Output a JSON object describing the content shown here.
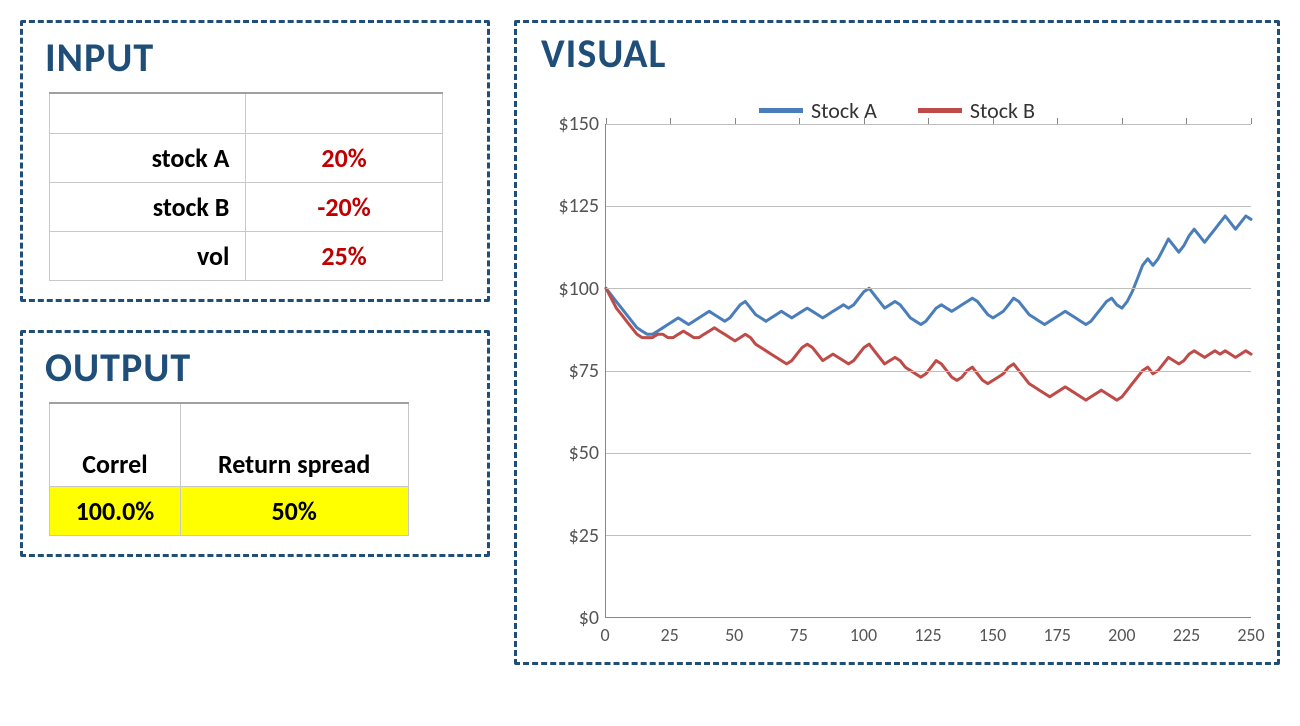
{
  "panels": {
    "input_title": "INPUT",
    "output_title": "OUTPUT",
    "visual_title": "VISUAL"
  },
  "input": {
    "rows": [
      {
        "label": "stock A",
        "value": "20%"
      },
      {
        "label": "stock B",
        "value": "-20%"
      },
      {
        "label": "vol",
        "value": "25%"
      }
    ],
    "label_color": "#000000",
    "value_color": "#c00000",
    "border_color": "#c8c8c8",
    "fontsize": 26
  },
  "output": {
    "headers": [
      "Correl",
      "Return spread"
    ],
    "row": [
      "100.0%",
      "50%"
    ],
    "highlight_color": "#ffff00",
    "fontsize": 26
  },
  "chart": {
    "type": "line",
    "legend": [
      {
        "label": "Stock A",
        "color": "#4a7ebb"
      },
      {
        "label": "Stock B",
        "color": "#be4b48"
      }
    ],
    "x": {
      "min": 0,
      "max": 250,
      "tick_step": 25
    },
    "y": {
      "min": 0,
      "max": 150,
      "tick_step": 25,
      "prefix": "$"
    },
    "grid_color": "#bfbfbf",
    "axis_color": "#888888",
    "background_color": "#ffffff",
    "line_width": 3,
    "label_fontsize": 20,
    "series": {
      "stockA": {
        "color": "#4a7ebb",
        "points": [
          [
            0,
            100
          ],
          [
            2,
            98
          ],
          [
            4,
            96
          ],
          [
            6,
            94
          ],
          [
            8,
            92
          ],
          [
            10,
            90
          ],
          [
            12,
            88
          ],
          [
            14,
            87
          ],
          [
            16,
            86
          ],
          [
            18,
            86
          ],
          [
            20,
            87
          ],
          [
            22,
            88
          ],
          [
            24,
            89
          ],
          [
            26,
            90
          ],
          [
            28,
            91
          ],
          [
            30,
            90
          ],
          [
            32,
            89
          ],
          [
            34,
            90
          ],
          [
            36,
            91
          ],
          [
            38,
            92
          ],
          [
            40,
            93
          ],
          [
            42,
            92
          ],
          [
            44,
            91
          ],
          [
            46,
            90
          ],
          [
            48,
            91
          ],
          [
            50,
            93
          ],
          [
            52,
            95
          ],
          [
            54,
            96
          ],
          [
            56,
            94
          ],
          [
            58,
            92
          ],
          [
            60,
            91
          ],
          [
            62,
            90
          ],
          [
            64,
            91
          ],
          [
            66,
            92
          ],
          [
            68,
            93
          ],
          [
            70,
            92
          ],
          [
            72,
            91
          ],
          [
            74,
            92
          ],
          [
            76,
            93
          ],
          [
            78,
            94
          ],
          [
            80,
            93
          ],
          [
            82,
            92
          ],
          [
            84,
            91
          ],
          [
            86,
            92
          ],
          [
            88,
            93
          ],
          [
            90,
            94
          ],
          [
            92,
            95
          ],
          [
            94,
            94
          ],
          [
            96,
            95
          ],
          [
            98,
            97
          ],
          [
            100,
            99
          ],
          [
            102,
            100
          ],
          [
            104,
            98
          ],
          [
            106,
            96
          ],
          [
            108,
            94
          ],
          [
            110,
            95
          ],
          [
            112,
            96
          ],
          [
            114,
            95
          ],
          [
            116,
            93
          ],
          [
            118,
            91
          ],
          [
            120,
            90
          ],
          [
            122,
            89
          ],
          [
            124,
            90
          ],
          [
            126,
            92
          ],
          [
            128,
            94
          ],
          [
            130,
            95
          ],
          [
            132,
            94
          ],
          [
            134,
            93
          ],
          [
            136,
            94
          ],
          [
            138,
            95
          ],
          [
            140,
            96
          ],
          [
            142,
            97
          ],
          [
            144,
            96
          ],
          [
            146,
            94
          ],
          [
            148,
            92
          ],
          [
            150,
            91
          ],
          [
            152,
            92
          ],
          [
            154,
            93
          ],
          [
            156,
            95
          ],
          [
            158,
            97
          ],
          [
            160,
            96
          ],
          [
            162,
            94
          ],
          [
            164,
            92
          ],
          [
            166,
            91
          ],
          [
            168,
            90
          ],
          [
            170,
            89
          ],
          [
            172,
            90
          ],
          [
            174,
            91
          ],
          [
            176,
            92
          ],
          [
            178,
            93
          ],
          [
            180,
            92
          ],
          [
            182,
            91
          ],
          [
            184,
            90
          ],
          [
            186,
            89
          ],
          [
            188,
            90
          ],
          [
            190,
            92
          ],
          [
            192,
            94
          ],
          [
            194,
            96
          ],
          [
            196,
            97
          ],
          [
            198,
            95
          ],
          [
            200,
            94
          ],
          [
            202,
            96
          ],
          [
            204,
            99
          ],
          [
            206,
            103
          ],
          [
            208,
            107
          ],
          [
            210,
            109
          ],
          [
            212,
            107
          ],
          [
            214,
            109
          ],
          [
            216,
            112
          ],
          [
            218,
            115
          ],
          [
            220,
            113
          ],
          [
            222,
            111
          ],
          [
            224,
            113
          ],
          [
            226,
            116
          ],
          [
            228,
            118
          ],
          [
            230,
            116
          ],
          [
            232,
            114
          ],
          [
            234,
            116
          ],
          [
            236,
            118
          ],
          [
            238,
            120
          ],
          [
            240,
            122
          ],
          [
            242,
            120
          ],
          [
            244,
            118
          ],
          [
            246,
            120
          ],
          [
            248,
            122
          ],
          [
            250,
            121
          ]
        ]
      },
      "stockB": {
        "color": "#be4b48",
        "points": [
          [
            0,
            100
          ],
          [
            2,
            97
          ],
          [
            4,
            94
          ],
          [
            6,
            92
          ],
          [
            8,
            90
          ],
          [
            10,
            88
          ],
          [
            12,
            86
          ],
          [
            14,
            85
          ],
          [
            16,
            85
          ],
          [
            18,
            85
          ],
          [
            20,
            86
          ],
          [
            22,
            86
          ],
          [
            24,
            85
          ],
          [
            26,
            85
          ],
          [
            28,
            86
          ],
          [
            30,
            87
          ],
          [
            32,
            86
          ],
          [
            34,
            85
          ],
          [
            36,
            85
          ],
          [
            38,
            86
          ],
          [
            40,
            87
          ],
          [
            42,
            88
          ],
          [
            44,
            87
          ],
          [
            46,
            86
          ],
          [
            48,
            85
          ],
          [
            50,
            84
          ],
          [
            52,
            85
          ],
          [
            54,
            86
          ],
          [
            56,
            85
          ],
          [
            58,
            83
          ],
          [
            60,
            82
          ],
          [
            62,
            81
          ],
          [
            64,
            80
          ],
          [
            66,
            79
          ],
          [
            68,
            78
          ],
          [
            70,
            77
          ],
          [
            72,
            78
          ],
          [
            74,
            80
          ],
          [
            76,
            82
          ],
          [
            78,
            83
          ],
          [
            80,
            82
          ],
          [
            82,
            80
          ],
          [
            84,
            78
          ],
          [
            86,
            79
          ],
          [
            88,
            80
          ],
          [
            90,
            79
          ],
          [
            92,
            78
          ],
          [
            94,
            77
          ],
          [
            96,
            78
          ],
          [
            98,
            80
          ],
          [
            100,
            82
          ],
          [
            102,
            83
          ],
          [
            104,
            81
          ],
          [
            106,
            79
          ],
          [
            108,
            77
          ],
          [
            110,
            78
          ],
          [
            112,
            79
          ],
          [
            114,
            78
          ],
          [
            116,
            76
          ],
          [
            118,
            75
          ],
          [
            120,
            74
          ],
          [
            122,
            73
          ],
          [
            124,
            74
          ],
          [
            126,
            76
          ],
          [
            128,
            78
          ],
          [
            130,
            77
          ],
          [
            132,
            75
          ],
          [
            134,
            73
          ],
          [
            136,
            72
          ],
          [
            138,
            73
          ],
          [
            140,
            75
          ],
          [
            142,
            76
          ],
          [
            144,
            74
          ],
          [
            146,
            72
          ],
          [
            148,
            71
          ],
          [
            150,
            72
          ],
          [
            152,
            73
          ],
          [
            154,
            74
          ],
          [
            156,
            76
          ],
          [
            158,
            77
          ],
          [
            160,
            75
          ],
          [
            162,
            73
          ],
          [
            164,
            71
          ],
          [
            166,
            70
          ],
          [
            168,
            69
          ],
          [
            170,
            68
          ],
          [
            172,
            67
          ],
          [
            174,
            68
          ],
          [
            176,
            69
          ],
          [
            178,
            70
          ],
          [
            180,
            69
          ],
          [
            182,
            68
          ],
          [
            184,
            67
          ],
          [
            186,
            66
          ],
          [
            188,
            67
          ],
          [
            190,
            68
          ],
          [
            192,
            69
          ],
          [
            194,
            68
          ],
          [
            196,
            67
          ],
          [
            198,
            66
          ],
          [
            200,
            67
          ],
          [
            202,
            69
          ],
          [
            204,
            71
          ],
          [
            206,
            73
          ],
          [
            208,
            75
          ],
          [
            210,
            76
          ],
          [
            212,
            74
          ],
          [
            214,
            75
          ],
          [
            216,
            77
          ],
          [
            218,
            79
          ],
          [
            220,
            78
          ],
          [
            222,
            77
          ],
          [
            224,
            78
          ],
          [
            226,
            80
          ],
          [
            228,
            81
          ],
          [
            230,
            80
          ],
          [
            232,
            79
          ],
          [
            234,
            80
          ],
          [
            236,
            81
          ],
          [
            238,
            80
          ],
          [
            240,
            81
          ],
          [
            242,
            80
          ],
          [
            244,
            79
          ],
          [
            246,
            80
          ],
          [
            248,
            81
          ],
          [
            250,
            80
          ]
        ]
      }
    }
  },
  "style": {
    "panel_border_color": "#1f4e79",
    "panel_title_color": "#1f4e79",
    "panel_title_fontsize": 40
  }
}
